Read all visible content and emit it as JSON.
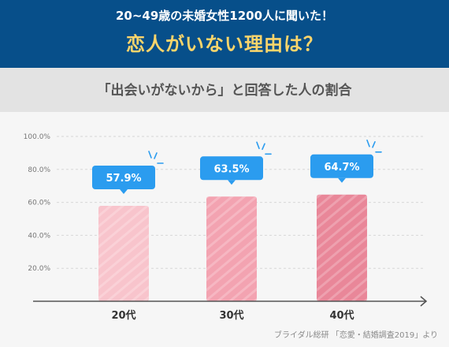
{
  "header": {
    "subtitle": "20~49歳の未婚女性1200人に聞いた！",
    "title": "恋人がいない理由は？"
  },
  "question": "「出会いがないから」と回答した人の割合",
  "source": "ブライダル総研 「恋愛・結婚調査2019」より",
  "colors": {
    "header_bg": "#074f8a",
    "title": "#fbd56b",
    "bubble": "#2b9cef",
    "bars": [
      "#f8c4cc",
      "#f3a3b1",
      "#e98799"
    ]
  },
  "chart_data": {
    "type": "bar",
    "categories": [
      "20代",
      "30代",
      "40代"
    ],
    "values": [
      57.9,
      63.5,
      64.7
    ],
    "value_labels": [
      "57.9%",
      "63.5%",
      "64.7%"
    ],
    "yticks": [
      "20.0%",
      "40.0%",
      "60.0%",
      "80.0%",
      "100.0%"
    ],
    "ytick_values": [
      20,
      40,
      60,
      80,
      100
    ],
    "ylim": [
      0,
      100
    ],
    "grid": true
  }
}
